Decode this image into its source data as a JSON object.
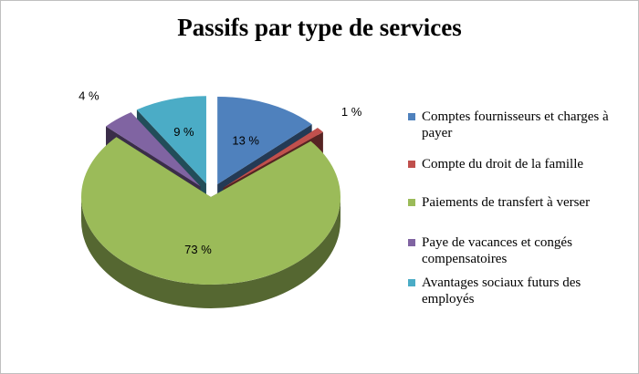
{
  "chart_data": {
    "type": "pie",
    "title": "Passifs par type de services",
    "categories": [
      "Comptes fournisseurs et charges à payer",
      "Compte du droit de la famille",
      "Paiements de transfert à verser",
      "Paye de vacances et congés compensatoires",
      "Avantages sociaux futurs des employés"
    ],
    "values": [
      13,
      1,
      73,
      4,
      9
    ],
    "value_labels": [
      "13 %",
      "1 %",
      "73 %",
      "4 %",
      "9 %"
    ],
    "colors": [
      "#4f81bd",
      "#c0504d",
      "#9bbb59",
      "#8064a2",
      "#4bacc6"
    ],
    "exploded": [
      true,
      true,
      false,
      true,
      true
    ],
    "three_d": true,
    "legend": "right"
  }
}
